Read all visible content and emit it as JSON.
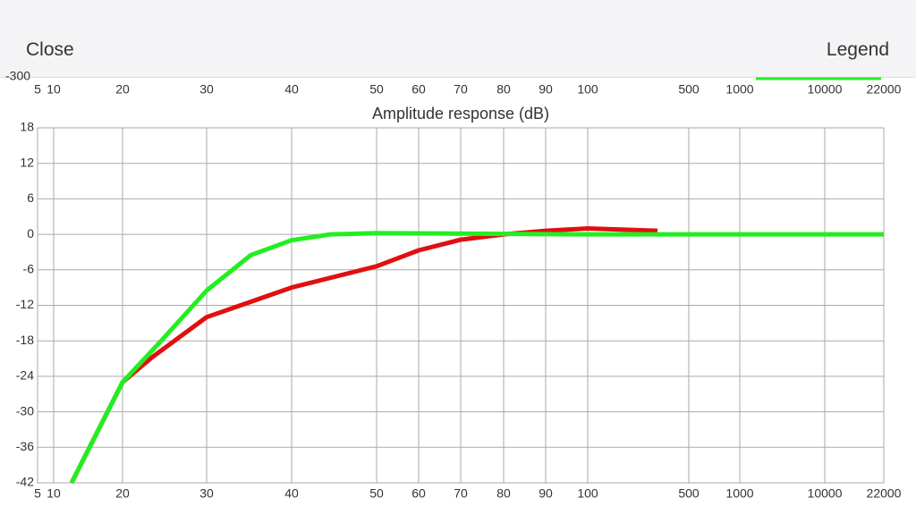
{
  "header": {
    "close": "Close",
    "legend": "Legend",
    "top_axis_label": "-300"
  },
  "chart_data": {
    "type": "line",
    "title": "Amplitude response (dB)",
    "xticks": [
      5,
      10,
      20,
      30,
      40,
      50,
      60,
      70,
      80,
      90,
      100,
      500,
      1000,
      10000,
      22000
    ],
    "xlim": [
      5,
      22000
    ],
    "ylim": [
      -42,
      18
    ],
    "yticks": [
      18,
      12,
      6,
      0,
      -6,
      -12,
      -18,
      -24,
      -30,
      -36,
      -42
    ],
    "grid": true,
    "series": [
      {
        "color": "#e01010",
        "x": [
          12.6,
          20,
          23.5,
          30,
          40,
          50,
          60,
          70,
          80,
          90,
          100,
          376
        ],
        "values": [
          -42,
          -25,
          -20.8,
          -14,
          -9,
          -5.4,
          -2.7,
          -0.9,
          0,
          0.6,
          1,
          0.6
        ]
      },
      {
        "color": "#22ee22",
        "x": [
          12.6,
          20,
          24.6,
          30,
          35.2,
          40,
          44.6,
          50,
          100,
          1000,
          22000
        ],
        "values": [
          -42,
          -25,
          -18,
          -9.5,
          -3.5,
          -1,
          0,
          0.2,
          0,
          0,
          0
        ]
      }
    ]
  }
}
